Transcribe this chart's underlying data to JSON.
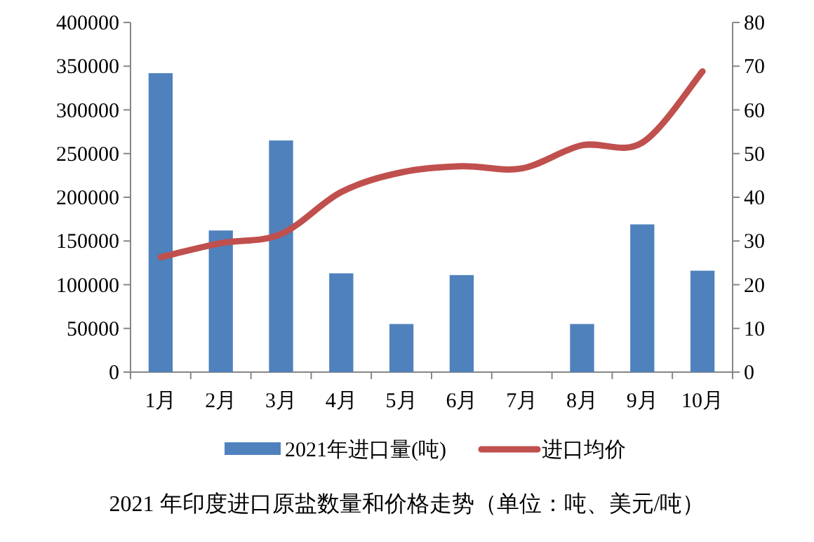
{
  "chart_data": {
    "type": "bar",
    "title": "2021 年印度进口原盐数量和价格走势（单位：吨、美元/吨）",
    "categories": [
      "1月",
      "2月",
      "3月",
      "4月",
      "5月",
      "6月",
      "7月",
      "8月",
      "9月",
      "10月"
    ],
    "series": [
      {
        "name": "2021年进口量(吨)",
        "color": "#4f81bd",
        "values": [
          342000,
          162000,
          265000,
          113000,
          55000,
          111000,
          null,
          55000,
          169000,
          116000
        ]
      },
      {
        "name": "进口均价",
        "type": "line",
        "axis": "y2",
        "color": "#c0504d",
        "values": [
          26.3,
          29.5,
          31.6,
          41.2,
          45.7,
          47.1,
          46.6,
          51.9,
          52.5,
          68.8
        ]
      }
    ],
    "ylim": [
      0,
      400000
    ],
    "yticks": [
      0,
      50000,
      100000,
      150000,
      200000,
      250000,
      300000,
      350000,
      400000
    ],
    "y2lim": [
      0,
      80
    ],
    "y2ticks": [
      0,
      10,
      20,
      30,
      40,
      50,
      60,
      70,
      80
    ],
    "grid": false,
    "legend": "bottom"
  }
}
